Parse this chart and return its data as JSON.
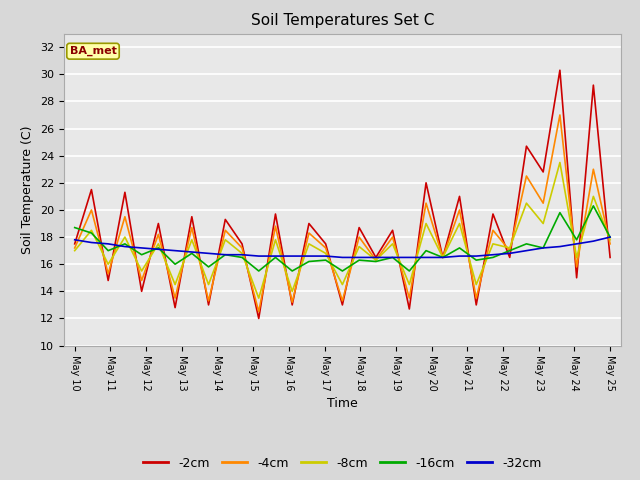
{
  "title": "Soil Temperatures Set C",
  "xlabel": "Time",
  "ylabel": "Soil Temperature (C)",
  "ylim": [
    10,
    33
  ],
  "yticks": [
    10,
    12,
    14,
    16,
    18,
    20,
    22,
    24,
    26,
    28,
    30,
    32
  ],
  "annotation": "BA_met",
  "fig_facecolor": "#d8d8d8",
  "plot_facecolor": "#e8e8e8",
  "colors": {
    "-2cm": "#cc0000",
    "-4cm": "#ff8800",
    "-8cm": "#cccc00",
    "-16cm": "#00aa00",
    "-32cm": "#0000cc"
  },
  "legend_labels": [
    "-2cm",
    "-4cm",
    "-8cm",
    "-16cm",
    "-32cm"
  ],
  "x_tick_labels": [
    "May 10",
    "May 11",
    "May 12",
    "May 13",
    "May 14",
    "May 15",
    "May 16",
    "May 17",
    "May 18",
    "May 19",
    "May 20",
    "May 21",
    "May 22",
    "May 23",
    "May 24",
    "May 25"
  ],
  "linewidth": 1.2,
  "data_2cm": [
    17.5,
    21.5,
    14.8,
    21.3,
    14.0,
    19.0,
    12.8,
    19.5,
    13.0,
    19.3,
    17.5,
    12.0,
    19.7,
    13.0,
    19.0,
    17.5,
    13.0,
    18.7,
    16.5,
    18.5,
    12.7,
    22.0,
    16.5,
    21.0,
    13.0,
    19.7,
    16.5,
    24.7,
    22.8,
    30.3,
    15.0,
    29.2,
    16.5
  ],
  "data_4cm": [
    17.2,
    20.0,
    15.3,
    19.5,
    14.8,
    18.2,
    13.5,
    18.7,
    13.3,
    18.5,
    17.2,
    12.5,
    18.8,
    13.2,
    18.3,
    17.2,
    13.3,
    18.0,
    16.3,
    18.0,
    13.5,
    20.5,
    16.5,
    20.0,
    13.5,
    18.5,
    17.0,
    22.5,
    20.5,
    27.0,
    15.8,
    23.0,
    17.5
  ],
  "data_8cm": [
    17.0,
    18.5,
    16.0,
    18.0,
    15.5,
    17.5,
    14.5,
    17.8,
    14.5,
    17.8,
    16.8,
    13.5,
    17.8,
    14.0,
    17.5,
    16.8,
    14.5,
    17.3,
    16.3,
    17.5,
    14.5,
    19.0,
    16.5,
    19.0,
    14.5,
    17.5,
    17.2,
    20.5,
    19.0,
    23.5,
    16.5,
    21.0,
    17.8
  ],
  "data_16cm": [
    18.7,
    18.3,
    17.0,
    17.5,
    16.7,
    17.2,
    16.0,
    16.8,
    15.8,
    16.7,
    16.5,
    15.5,
    16.5,
    15.5,
    16.2,
    16.3,
    15.5,
    16.3,
    16.2,
    16.5,
    15.5,
    17.0,
    16.5,
    17.2,
    16.3,
    16.5,
    17.0,
    17.5,
    17.2,
    19.8,
    17.8,
    20.3,
    18.0
  ],
  "data_32cm": [
    17.8,
    17.6,
    17.5,
    17.3,
    17.2,
    17.1,
    17.0,
    16.9,
    16.8,
    16.7,
    16.7,
    16.6,
    16.6,
    16.6,
    16.6,
    16.6,
    16.5,
    16.5,
    16.5,
    16.5,
    16.5,
    16.5,
    16.5,
    16.6,
    16.6,
    16.7,
    16.8,
    17.0,
    17.2,
    17.3,
    17.5,
    17.7,
    18.0
  ]
}
